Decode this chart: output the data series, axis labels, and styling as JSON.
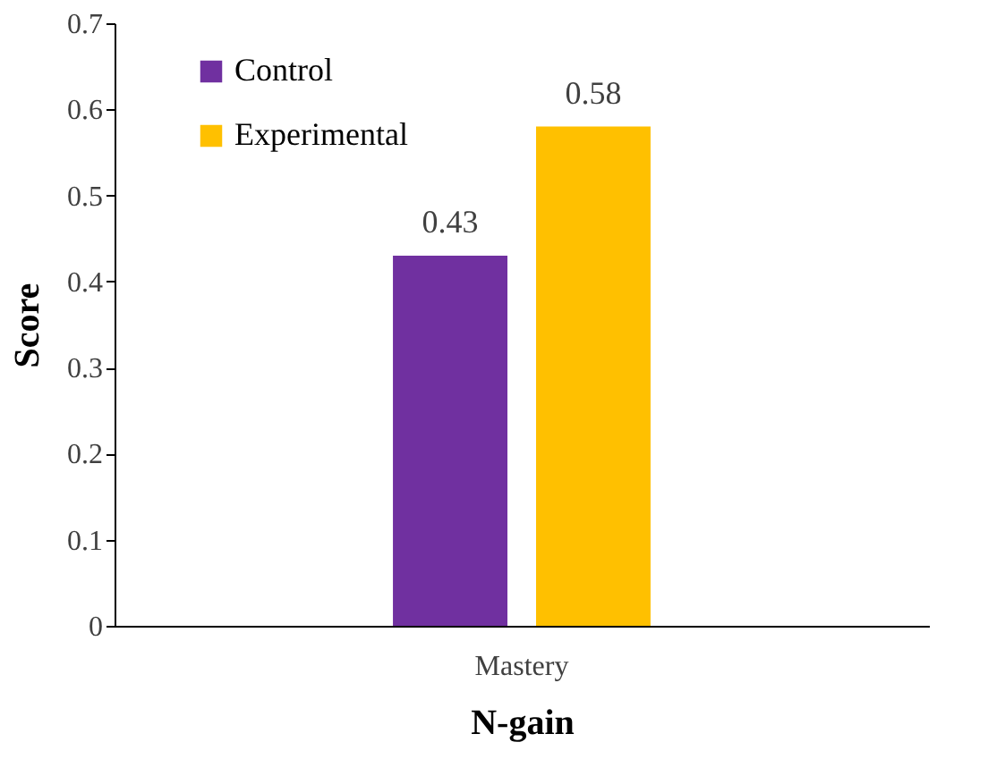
{
  "chart_data": {
    "type": "bar",
    "xlabel": "N-gain",
    "ylabel": "Score",
    "categories": [
      "Mastery"
    ],
    "series": [
      {
        "name": "Control",
        "color": "#7030a0",
        "values": [
          0.43
        ]
      },
      {
        "name": "Experimental",
        "color": "#ffc000",
        "values": [
          0.58
        ]
      }
    ],
    "ylim": [
      0,
      0.7
    ],
    "yticks": [
      0,
      0.1,
      0.2,
      0.3,
      0.4,
      0.5,
      0.6,
      0.7
    ],
    "grid": false,
    "legend": "top left",
    "data_labels": true
  }
}
